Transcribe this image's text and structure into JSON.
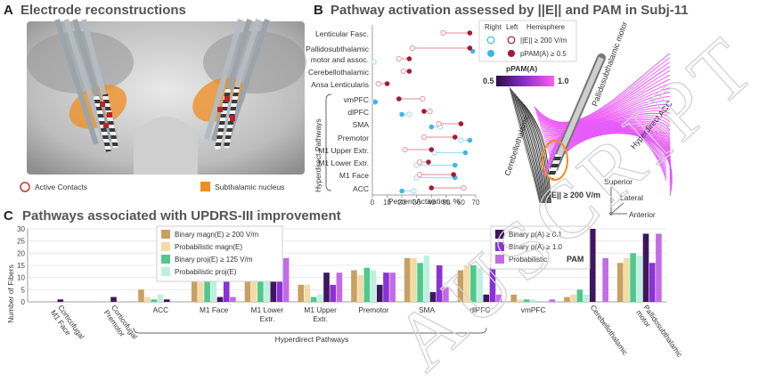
{
  "panelA": {
    "letter": "A",
    "title": "Electrode reconstructions",
    "legend": [
      {
        "label": "Active Contacts",
        "color": "#c0392b",
        "kind": "ring"
      },
      {
        "label": "Subthalamic nucleus",
        "color": "#f28c1e",
        "kind": "square"
      }
    ]
  },
  "panelB": {
    "letter": "B",
    "title": "Pathway activation assessed by ||E|| and PAM in Subj-11",
    "xlabel": "Percent Activation, %",
    "xticks": [
      0,
      10,
      20,
      30,
      40,
      50,
      60,
      70
    ],
    "bracket_label": "Hyperdirect Pathways",
    "legend": {
      "col_right": "Right",
      "col_left": "Left",
      "col_hemi": "Hemisphere",
      "row1": "||E|| ≥ 200 V/m",
      "row2": "pPAM(A) ≥ 0.5",
      "colorbar_title": "pPAM(A)",
      "colorbar_min": "0.5",
      "colorbar_max": "1.0"
    },
    "colors": {
      "left_dark": "#a31b33",
      "left_light": "#e8a0aa",
      "right_dark": "#3db8e6",
      "right_light": "#9fdff5"
    },
    "rows": [
      {
        "label": "Lenticular Fasc.",
        "E_left": 48,
        "P_left": 66,
        "E_right": null,
        "P_right": null
      },
      {
        "label": "Pallidosubthalamic",
        "E_left": 27,
        "P_left": 66,
        "E_right": null,
        "P_right": 68
      },
      {
        "label": "motor and assoc.",
        "E_left": 18,
        "P_left": 25,
        "E_right": 1,
        "P_right": null
      },
      {
        "label": "Cerebellothalamic",
        "E_left": 21,
        "P_left": 25,
        "E_right": null,
        "P_right": null
      },
      {
        "label": "Ansa Lenticularis",
        "E_left": 4,
        "P_left": 10,
        "E_right": null,
        "P_right": null
      },
      {
        "label": "vmPFC",
        "E_left": 34,
        "P_left": 18,
        "E_right": 1,
        "P_right": 2
      },
      {
        "label": "dlPFC",
        "E_left": 39,
        "P_left": 35,
        "E_right": 25,
        "P_right": 20
      },
      {
        "label": "SMA",
        "E_left": 45,
        "P_left": 60,
        "E_right": 46,
        "P_right": 40
      },
      {
        "label": "Premotor",
        "E_left": 35,
        "P_left": 56,
        "E_right": 60,
        "P_right": 66
      },
      {
        "label": "M1 Upper Extr.",
        "E_left": 22,
        "P_left": 40,
        "E_right": 42,
        "P_right": 63
      },
      {
        "label": "M1 Lower Extr.",
        "E_left": 32,
        "P_left": 38,
        "E_right": 30,
        "P_right": 56
      },
      {
        "label": "M1 Face",
        "E_left": 32,
        "P_left": 55,
        "E_right": 30,
        "P_right": 56
      },
      {
        "label": "ACC",
        "E_left": 62,
        "P_left": 40,
        "E_right": 28,
        "P_right": 20
      }
    ]
  },
  "panel3d": {
    "labels": [
      "Pallidosubthalamic motor",
      "Cerebellothalamic",
      "Hyperdirect ACC",
      "||E|| ≥ 200 V/m"
    ],
    "axes": [
      "Superior",
      "Lateral",
      "Anterior"
    ]
  },
  "panelC": {
    "letter": "C",
    "title": "Pathways associated with UPDRS-III improvement",
    "ylabel": "Number of Fibers",
    "yticks": [
      0,
      5,
      10,
      15,
      20,
      25,
      30
    ],
    "ylim": [
      0,
      30
    ],
    "hyperdirect_label": "Hyperdirect Pathways",
    "legend_left": [
      {
        "label": "Binary magn(E) ≥ 200 V/m",
        "color": "#c9a062"
      },
      {
        "label": "Probabilistic magn(E)",
        "color": "#f2dba5"
      },
      {
        "label": "Binary proj(E) ≥ 125 V/m",
        "color": "#4dc98c"
      },
      {
        "label": "Probabilistic proj(E)",
        "color": "#bff0df"
      }
    ],
    "legend_right": [
      {
        "label": "Binary p(A) ≥ 0.1",
        "color": "#3f155e"
      },
      {
        "label": "Binary p(A) ≥ 1.0",
        "color": "#8b32d4"
      },
      {
        "label": "Probabilistic",
        "color": "#c36be6"
      }
    ],
    "legend_right_badge": "PAM"
  },
  "chart_data": {
    "type": "bar",
    "title": "Pathways associated with UPDRS-III improvement",
    "ylabel": "Number of Fibers",
    "ylim": [
      0,
      30
    ],
    "categories": [
      "Corticofugal M1 Face",
      "Corticofugal Premotor",
      "ACC",
      "M1 Face",
      "M1 Lower Extr.",
      "M1 Upper Extr.",
      "Premotor",
      "SMA",
      "dlPFC",
      "vmPFC",
      "Cerebellothalamic",
      "Pallidosubthalamic motor"
    ],
    "category_lines": [
      [
        "Corticofugal",
        "M1 Face"
      ],
      [
        "Corticofugal",
        "Premotor"
      ],
      [
        "ACC"
      ],
      [
        "M1 Face"
      ],
      [
        "M1 Lower",
        "Extr."
      ],
      [
        "M1 Upper",
        "Extr."
      ],
      [
        "Premotor"
      ],
      [
        "SMA"
      ],
      [
        "dlPFC"
      ],
      [
        "vmPFC"
      ],
      [
        "Cerebellothalamic"
      ],
      [
        "Pallidosubthalamic",
        "motor"
      ]
    ],
    "rotated": [
      true,
      true,
      false,
      false,
      false,
      false,
      false,
      false,
      false,
      false,
      true,
      true
    ],
    "series": [
      {
        "name": "Binary magn(E) ≥ 200 V/m",
        "color": "#c9a062",
        "values": [
          0,
          0,
          5,
          9,
          13,
          7,
          13,
          18,
          13,
          3,
          2,
          16
        ]
      },
      {
        "name": "Probabilistic magn(E)",
        "color": "#f2dba5",
        "values": [
          0,
          0,
          2,
          8,
          17,
          7,
          11,
          18,
          15,
          1,
          3,
          18
        ]
      },
      {
        "name": "Binary proj(E) ≥ 125 V/m",
        "color": "#4dc98c",
        "values": [
          0,
          0,
          1,
          12,
          14,
          2,
          14,
          16,
          15,
          1,
          5,
          20
        ]
      },
      {
        "name": "Probabilistic proj(E)",
        "color": "#bff0df",
        "values": [
          0,
          0,
          3,
          11,
          14,
          3,
          13,
          19,
          14,
          1,
          3,
          19
        ]
      },
      {
        "name": "Binary p(A) ≥ 0.1",
        "color": "#3f155e",
        "values": [
          1,
          2,
          1,
          2,
          15,
          12,
          7,
          4,
          3,
          0,
          30,
          28
        ]
      },
      {
        "name": "Binary p(A) ≥ 1.0",
        "color": "#8b32d4",
        "values": [
          0,
          0,
          0,
          21,
          14,
          7,
          12,
          15,
          14,
          0,
          0,
          16
        ]
      },
      {
        "name": "Probabilistic",
        "color": "#c36be6",
        "values": [
          0,
          0,
          0,
          2,
          18,
          12,
          12,
          6,
          3,
          1,
          18,
          28
        ]
      }
    ]
  },
  "watermark": "AUSCRIPT"
}
